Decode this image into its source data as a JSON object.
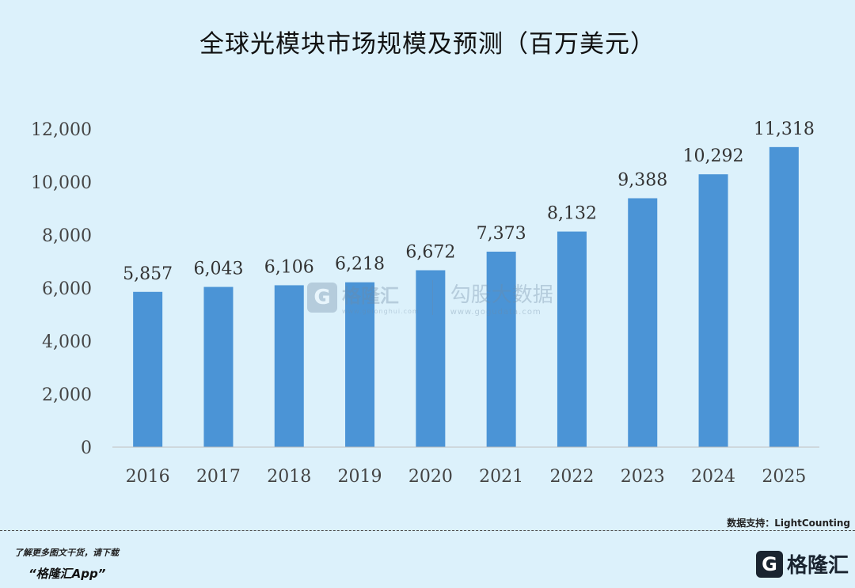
{
  "chart_data": {
    "type": "bar",
    "title": "全球光模块市场规模及预测（百万美元）",
    "xlabel": "",
    "ylabel": "",
    "categories": [
      "2016",
      "2017",
      "2018",
      "2019",
      "2020",
      "2021",
      "2022",
      "2023",
      "2024",
      "2025"
    ],
    "values": [
      5857,
      6043,
      6106,
      6218,
      6672,
      7373,
      8132,
      9388,
      10292,
      11318
    ],
    "value_labels": [
      "5,857",
      "6,043",
      "6,106",
      "6,218",
      "6,672",
      "7,373",
      "8,132",
      "9,388",
      "10,292",
      "11,318"
    ],
    "yticks": [
      0,
      2000,
      4000,
      6000,
      8000,
      10000,
      12000
    ],
    "ytick_labels": [
      "0",
      "2,000",
      "4,000",
      "6,000",
      "8,000",
      "10,000",
      "12,000"
    ],
    "ylim": [
      0,
      12000
    ],
    "grid": false,
    "bar_color": "#4b94d6"
  },
  "watermark": {
    "brand": "格隆汇",
    "brand_url": "www.gelonghui.com",
    "partner": "勾股大数据",
    "partner_url": "www.gogudata.com",
    "logo_letter": "G"
  },
  "source": "数据支持：LightCounting",
  "footer": {
    "hint": "了解更多图文干货，请下载",
    "app": "“格隆汇App”",
    "logo_letter": "G",
    "logo_text": "格隆汇"
  }
}
